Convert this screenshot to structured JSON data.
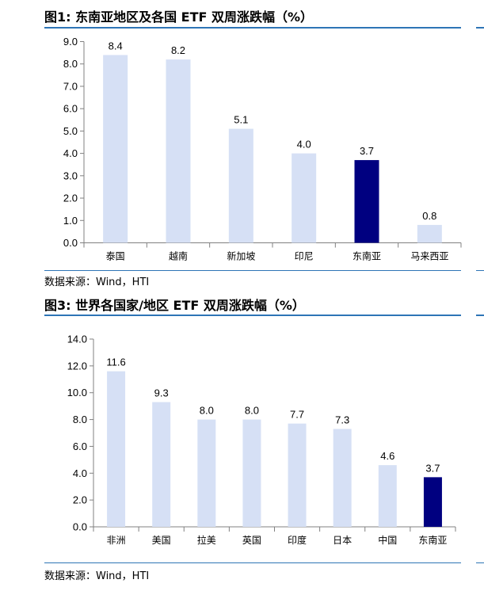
{
  "charts": [
    {
      "title": "图1:  东南亚地区及各国 ETF 双周涨跌幅（%）",
      "source": "数据来源：Wind，HTI"
    },
    {
      "title": "图3:  世界各国家/地区 ETF 双周涨跌幅（%）",
      "source": "数据来源：Wind，HTI"
    }
  ],
  "colors": {
    "rule": "#2e75b6",
    "bar": "#d6e0f5",
    "highlight": "#000080"
  },
  "chart_data": [
    {
      "type": "bar",
      "title": "图1:  东南亚地区及各国 ETF 双周涨跌幅（%）",
      "categories": [
        "泰国",
        "越南",
        "新加坡",
        "印尼",
        "东南亚",
        "马来西亚"
      ],
      "values": [
        8.4,
        8.2,
        5.1,
        4.0,
        3.7,
        0.8
      ],
      "value_labels": [
        "8.4",
        "8.2",
        "5.1",
        "4.0",
        "3.7",
        "0.8"
      ],
      "highlight": "东南亚",
      "ylim": [
        0,
        9
      ],
      "yticks": [
        "0.0",
        "1.0",
        "2.0",
        "3.0",
        "4.0",
        "5.0",
        "6.0",
        "7.0",
        "8.0",
        "9.0"
      ],
      "xlabel": "",
      "ylabel": "",
      "grid": false
    },
    {
      "type": "bar",
      "title": "图3:  世界各国家/地区 ETF 双周涨跌幅（%）",
      "categories": [
        "非洲",
        "美国",
        "拉美",
        "英国",
        "印度",
        "日本",
        "中国",
        "东南亚"
      ],
      "values": [
        11.6,
        9.3,
        8.0,
        8.0,
        7.7,
        7.3,
        4.6,
        3.7
      ],
      "value_labels": [
        "11.6",
        "9.3",
        "8.0",
        "8.0",
        "7.7",
        "7.3",
        "4.6",
        "3.7"
      ],
      "highlight": "东南亚",
      "ylim": [
        0,
        14
      ],
      "yticks": [
        "0.0",
        "2.0",
        "4.0",
        "6.0",
        "8.0",
        "10.0",
        "12.0",
        "14.0"
      ],
      "xlabel": "",
      "ylabel": "",
      "grid": false
    }
  ]
}
